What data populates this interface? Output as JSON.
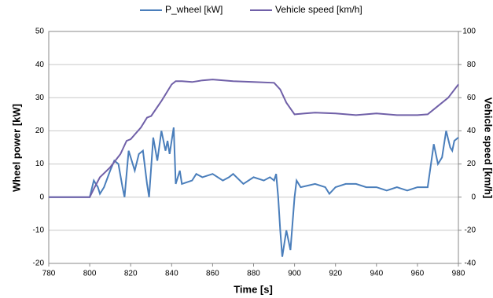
{
  "chart_data": {
    "type": "line",
    "xlabel": "Time [s]",
    "ylabel": "Wheel power [kW]",
    "y2label": "Vehicle speed [km/h]",
    "xlim": [
      780,
      980
    ],
    "xticks": [
      780,
      800,
      820,
      840,
      860,
      880,
      900,
      920,
      940,
      960,
      980
    ],
    "ylim": [
      -20,
      50
    ],
    "yticks": [
      -20,
      -10,
      0,
      10,
      20,
      30,
      40,
      50
    ],
    "y2lim": [
      -40,
      100
    ],
    "y2ticks": [
      -40,
      -20,
      0,
      20,
      40,
      60,
      80,
      100
    ],
    "grid": true,
    "legend": "top",
    "series": [
      {
        "name": "P_wheel  [kW]",
        "color": "#4a7ebb",
        "x": [
          780,
          800,
          802,
          804,
          805,
          807,
          810,
          812,
          814,
          816,
          817,
          818,
          819,
          820,
          822,
          824,
          826,
          828,
          829,
          831,
          833,
          835,
          837,
          838,
          839,
          841,
          842,
          844,
          845,
          850,
          852,
          855,
          860,
          865,
          868,
          870,
          875,
          880,
          885,
          888,
          890,
          891,
          892,
          893,
          894,
          896,
          898,
          900,
          901,
          903,
          910,
          915,
          917,
          920,
          925,
          930,
          935,
          940,
          945,
          950,
          955,
          960,
          965,
          968,
          970,
          972,
          974,
          976,
          977,
          978,
          980
        ],
        "values": [
          0,
          0,
          5,
          3,
          1,
          3,
          8,
          11,
          10,
          3,
          0,
          7,
          14,
          12,
          8,
          13,
          14,
          4,
          0,
          18,
          11,
          20,
          14,
          17,
          13,
          21,
          4,
          8,
          4,
          5,
          7,
          6,
          7,
          5,
          6,
          7,
          4,
          6,
          5,
          6,
          5,
          7,
          0,
          -10,
          -18,
          -10,
          -16,
          0,
          5,
          3,
          4,
          3,
          1,
          3,
          4,
          4,
          3,
          3,
          2,
          3,
          2,
          3,
          3,
          16,
          10,
          12,
          20,
          15,
          14,
          17,
          18
        ]
      },
      {
        "name": "Vehicle speed [km/h]",
        "color": "#7060a8",
        "axis": "y2",
        "x": [
          780,
          800,
          802,
          805,
          810,
          815,
          818,
          820,
          825,
          828,
          830,
          835,
          840,
          842,
          845,
          850,
          855,
          860,
          870,
          880,
          890,
          893,
          896,
          900,
          905,
          910,
          920,
          930,
          940,
          950,
          960,
          965,
          970,
          975,
          980
        ],
        "values": [
          0,
          0,
          5,
          12,
          18,
          26,
          34,
          35,
          42,
          48,
          49,
          58,
          68,
          70,
          70,
          69.5,
          70.5,
          71,
          70,
          69.5,
          69,
          65,
          57,
          50,
          50.5,
          51,
          50.5,
          49.5,
          50.5,
          49.5,
          49.5,
          50,
          55,
          60,
          68
        ]
      }
    ]
  }
}
